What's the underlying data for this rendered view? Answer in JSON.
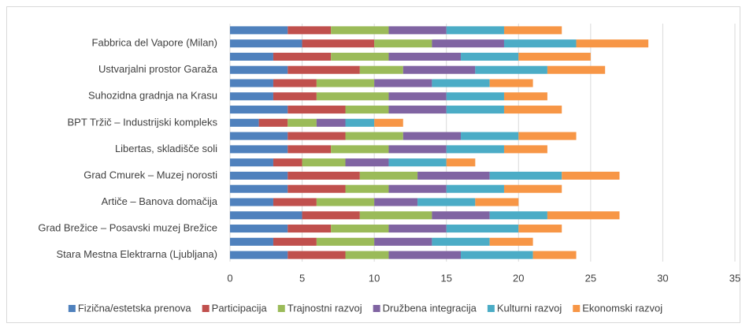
{
  "chart_data": {
    "type": "stacked-bar-horizontal",
    "categories": [
      "Stara Mestna Elektrarna (Ljubljana)",
      null,
      "Grad Brežice – Posavski muzej Brežice",
      null,
      "Artiče – Banova domačija",
      null,
      "Grad Cmurek – Muzej norosti",
      null,
      "Libertas, skladišče soli",
      null,
      "BPT Tržič – Industrijski kompleks",
      null,
      "Suhozidna gradnja na Krasu",
      null,
      "Ustvarjalni prostor Garaža",
      null,
      "Fabbrica del Vapore (Milan)",
      null
    ],
    "series": [
      {
        "name": "Fizična/estetska prenova",
        "color": "#4f81bd",
        "values": [
          4,
          3,
          4,
          5,
          3,
          4,
          4,
          3,
          4,
          4,
          2,
          4,
          3,
          3,
          4,
          3,
          5,
          4
        ]
      },
      {
        "name": "Participacija",
        "color": "#c0504d",
        "values": [
          4,
          3,
          3,
          4,
          3,
          4,
          5,
          2,
          3,
          4,
          2,
          4,
          3,
          3,
          5,
          4,
          5,
          3
        ]
      },
      {
        "name": "Trajnostni razvoj",
        "color": "#9bbb59",
        "values": [
          3,
          4,
          4,
          5,
          4,
          3,
          4,
          3,
          4,
          4,
          2,
          3,
          5,
          4,
          3,
          4,
          4,
          4
        ]
      },
      {
        "name": "Družbena integracija",
        "color": "#8064a2",
        "values": [
          5,
          4,
          4,
          4,
          3,
          4,
          5,
          3,
          4,
          4,
          2,
          4,
          4,
          4,
          5,
          5,
          5,
          4
        ]
      },
      {
        "name": "Kulturni razvoj",
        "color": "#4bacc6",
        "values": [
          5,
          4,
          5,
          4,
          4,
          4,
          5,
          4,
          4,
          4,
          2,
          4,
          4,
          4,
          5,
          4,
          5,
          4
        ]
      },
      {
        "name": "Ekonomski razvoj",
        "color": "#f79646",
        "values": [
          3,
          3,
          3,
          5,
          3,
          4,
          4,
          2,
          3,
          4,
          2,
          4,
          3,
          3,
          4,
          5,
          5,
          4
        ]
      }
    ],
    "xlim": [
      0,
      35
    ],
    "xticks": [
      0,
      5,
      10,
      15,
      20,
      25,
      30,
      35
    ],
    "grid": true,
    "legend": "bottom"
  }
}
